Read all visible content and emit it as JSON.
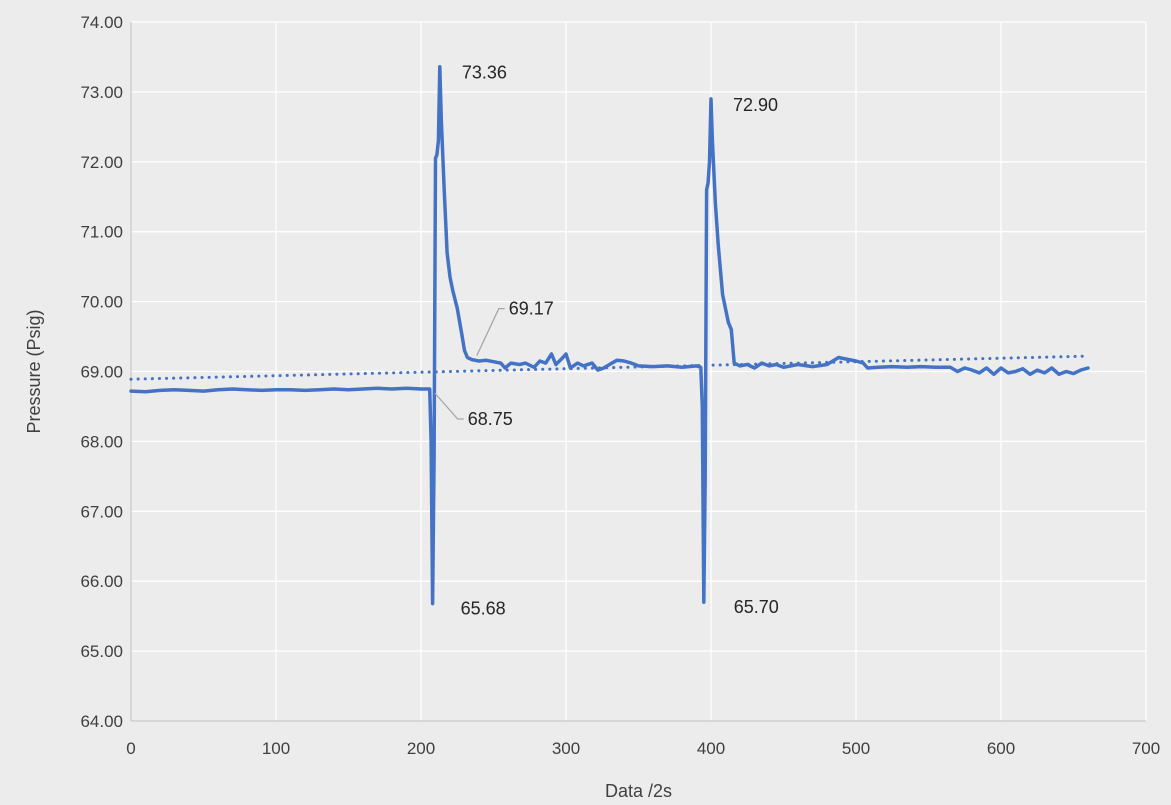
{
  "chart_data": {
    "type": "line",
    "title": "",
    "xlabel": "Data /2s",
    "ylabel": "Pressure (Psig)",
    "xlim": [
      0,
      700
    ],
    "ylim": [
      64,
      74
    ],
    "x_ticks": [
      0,
      100,
      200,
      300,
      400,
      500,
      600,
      700
    ],
    "y_ticks": [
      64,
      65,
      66,
      67,
      68,
      69,
      70,
      71,
      72,
      73,
      74
    ],
    "x_tick_labels": [
      "0",
      "100",
      "200",
      "300",
      "400",
      "500",
      "600",
      "700"
    ],
    "y_tick_labels": [
      "64.00",
      "65.00",
      "66.00",
      "67.00",
      "68.00",
      "69.00",
      "70.00",
      "71.00",
      "72.00",
      "73.00",
      "74.00"
    ],
    "grid": true,
    "legend": "none",
    "series": [
      {
        "color": "#4472c4",
        "style": "solid",
        "points": [
          [
            0,
            68.72
          ],
          [
            10,
            68.71
          ],
          [
            20,
            68.73
          ],
          [
            30,
            68.74
          ],
          [
            40,
            68.73
          ],
          [
            50,
            68.72
          ],
          [
            60,
            68.74
          ],
          [
            70,
            68.75
          ],
          [
            80,
            68.74
          ],
          [
            90,
            68.73
          ],
          [
            100,
            68.74
          ],
          [
            110,
            68.74
          ],
          [
            120,
            68.73
          ],
          [
            130,
            68.74
          ],
          [
            140,
            68.75
          ],
          [
            150,
            68.74
          ],
          [
            160,
            68.75
          ],
          [
            170,
            68.76
          ],
          [
            180,
            68.75
          ],
          [
            190,
            68.76
          ],
          [
            200,
            68.75
          ],
          [
            206,
            68.75
          ],
          [
            207,
            68.0
          ],
          [
            208,
            65.68
          ],
          [
            209,
            67.8
          ],
          [
            210,
            72.05
          ],
          [
            211,
            72.1
          ],
          [
            212,
            72.3
          ],
          [
            213,
            73.36
          ],
          [
            214,
            72.6
          ],
          [
            216,
            71.6
          ],
          [
            218,
            70.7
          ],
          [
            220,
            70.35
          ],
          [
            222,
            70.15
          ],
          [
            225,
            69.9
          ],
          [
            228,
            69.55
          ],
          [
            230,
            69.3
          ],
          [
            232,
            69.2
          ],
          [
            235,
            69.17
          ],
          [
            240,
            69.15
          ],
          [
            245,
            69.16
          ],
          [
            250,
            69.14
          ],
          [
            255,
            69.12
          ],
          [
            258,
            69.05
          ],
          [
            262,
            69.12
          ],
          [
            268,
            69.1
          ],
          [
            272,
            69.12
          ],
          [
            278,
            69.06
          ],
          [
            282,
            69.15
          ],
          [
            286,
            69.12
          ],
          [
            290,
            69.25
          ],
          [
            293,
            69.1
          ],
          [
            297,
            69.18
          ],
          [
            300,
            69.25
          ],
          [
            303,
            69.05
          ],
          [
            308,
            69.12
          ],
          [
            312,
            69.08
          ],
          [
            318,
            69.12
          ],
          [
            322,
            69.02
          ],
          [
            326,
            69.05
          ],
          [
            330,
            69.1
          ],
          [
            335,
            69.16
          ],
          [
            340,
            69.15
          ],
          [
            345,
            69.12
          ],
          [
            350,
            69.08
          ],
          [
            360,
            69.07
          ],
          [
            370,
            69.08
          ],
          [
            380,
            69.06
          ],
          [
            390,
            69.08
          ],
          [
            393,
            69.06
          ],
          [
            394,
            68.5
          ],
          [
            395,
            65.7
          ],
          [
            396,
            67.5
          ],
          [
            397,
            71.6
          ],
          [
            398,
            71.7
          ],
          [
            399,
            72.0
          ],
          [
            400,
            72.9
          ],
          [
            401,
            72.3
          ],
          [
            403,
            71.4
          ],
          [
            405,
            70.8
          ],
          [
            408,
            70.1
          ],
          [
            410,
            69.9
          ],
          [
            412,
            69.7
          ],
          [
            414,
            69.6
          ],
          [
            416,
            69.12
          ],
          [
            420,
            69.08
          ],
          [
            425,
            69.1
          ],
          [
            430,
            69.05
          ],
          [
            435,
            69.12
          ],
          [
            440,
            69.08
          ],
          [
            445,
            69.1
          ],
          [
            450,
            69.06
          ],
          [
            460,
            69.1
          ],
          [
            470,
            69.07
          ],
          [
            480,
            69.1
          ],
          [
            488,
            69.2
          ],
          [
            495,
            69.17
          ],
          [
            500,
            69.15
          ],
          [
            505,
            69.12
          ],
          [
            508,
            69.05
          ],
          [
            515,
            69.06
          ],
          [
            525,
            69.07
          ],
          [
            535,
            69.06
          ],
          [
            545,
            69.07
          ],
          [
            555,
            69.06
          ],
          [
            565,
            69.06
          ],
          [
            570,
            69.0
          ],
          [
            575,
            69.05
          ],
          [
            580,
            69.02
          ],
          [
            585,
            68.98
          ],
          [
            590,
            69.05
          ],
          [
            595,
            68.96
          ],
          [
            600,
            69.05
          ],
          [
            605,
            68.98
          ],
          [
            610,
            69.0
          ],
          [
            615,
            69.04
          ],
          [
            620,
            68.96
          ],
          [
            625,
            69.02
          ],
          [
            630,
            68.98
          ],
          [
            635,
            69.05
          ],
          [
            640,
            68.96
          ],
          [
            645,
            69.0
          ],
          [
            650,
            68.97
          ],
          [
            655,
            69.02
          ],
          [
            660,
            69.05
          ]
        ]
      },
      {
        "color": "#4472c4",
        "style": "dotted",
        "points": [
          [
            0,
            68.89
          ],
          [
            660,
            69.22
          ]
        ]
      }
    ],
    "annotations": [
      {
        "text": "73.36",
        "x": 213,
        "y": 73.36
      },
      {
        "text": "72.90",
        "x": 400,
        "y": 72.9
      },
      {
        "text": "69.17",
        "x": 235,
        "y": 69.17
      },
      {
        "text": "68.75",
        "x": 206,
        "y": 68.75
      },
      {
        "text": "65.68",
        "x": 208,
        "y": 65.68
      },
      {
        "text": "65.70",
        "x": 395,
        "y": 65.7
      }
    ]
  }
}
